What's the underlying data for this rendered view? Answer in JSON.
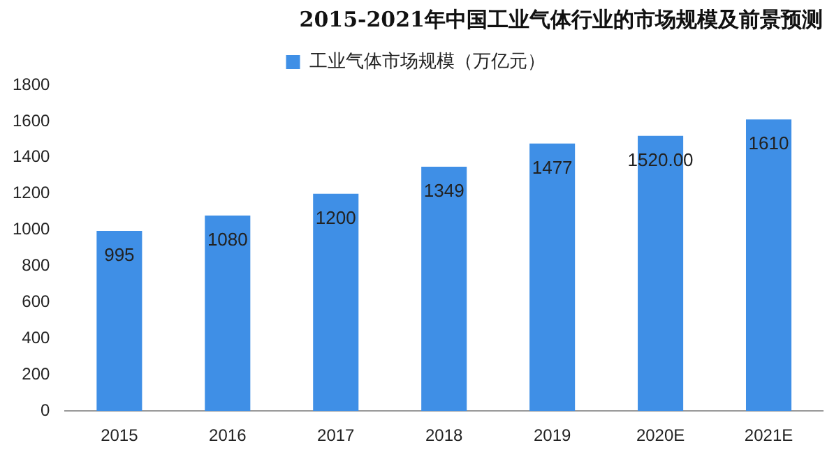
{
  "chart_data": {
    "type": "bar",
    "title": "2015-2021年中国工业气体行业的市场规模及前景预测",
    "categories": [
      "2015",
      "2016",
      "2017",
      "2018",
      "2019",
      "2020E",
      "2021E"
    ],
    "series": [
      {
        "name": "工业气体市场规模（万亿元）",
        "color": "#3f8fe6",
        "values": [
          995,
          1080,
          1200,
          1349,
          1477,
          1520,
          1610
        ],
        "value_labels": [
          "995",
          "1080",
          "1200",
          "1349",
          "1477",
          "1520.00",
          "1610"
        ]
      }
    ],
    "ylim": [
      0,
      1800
    ],
    "yticks": [
      0,
      200,
      400,
      600,
      800,
      1000,
      1200,
      1400,
      1600,
      1800
    ],
    "grid": false,
    "legend": "top"
  }
}
